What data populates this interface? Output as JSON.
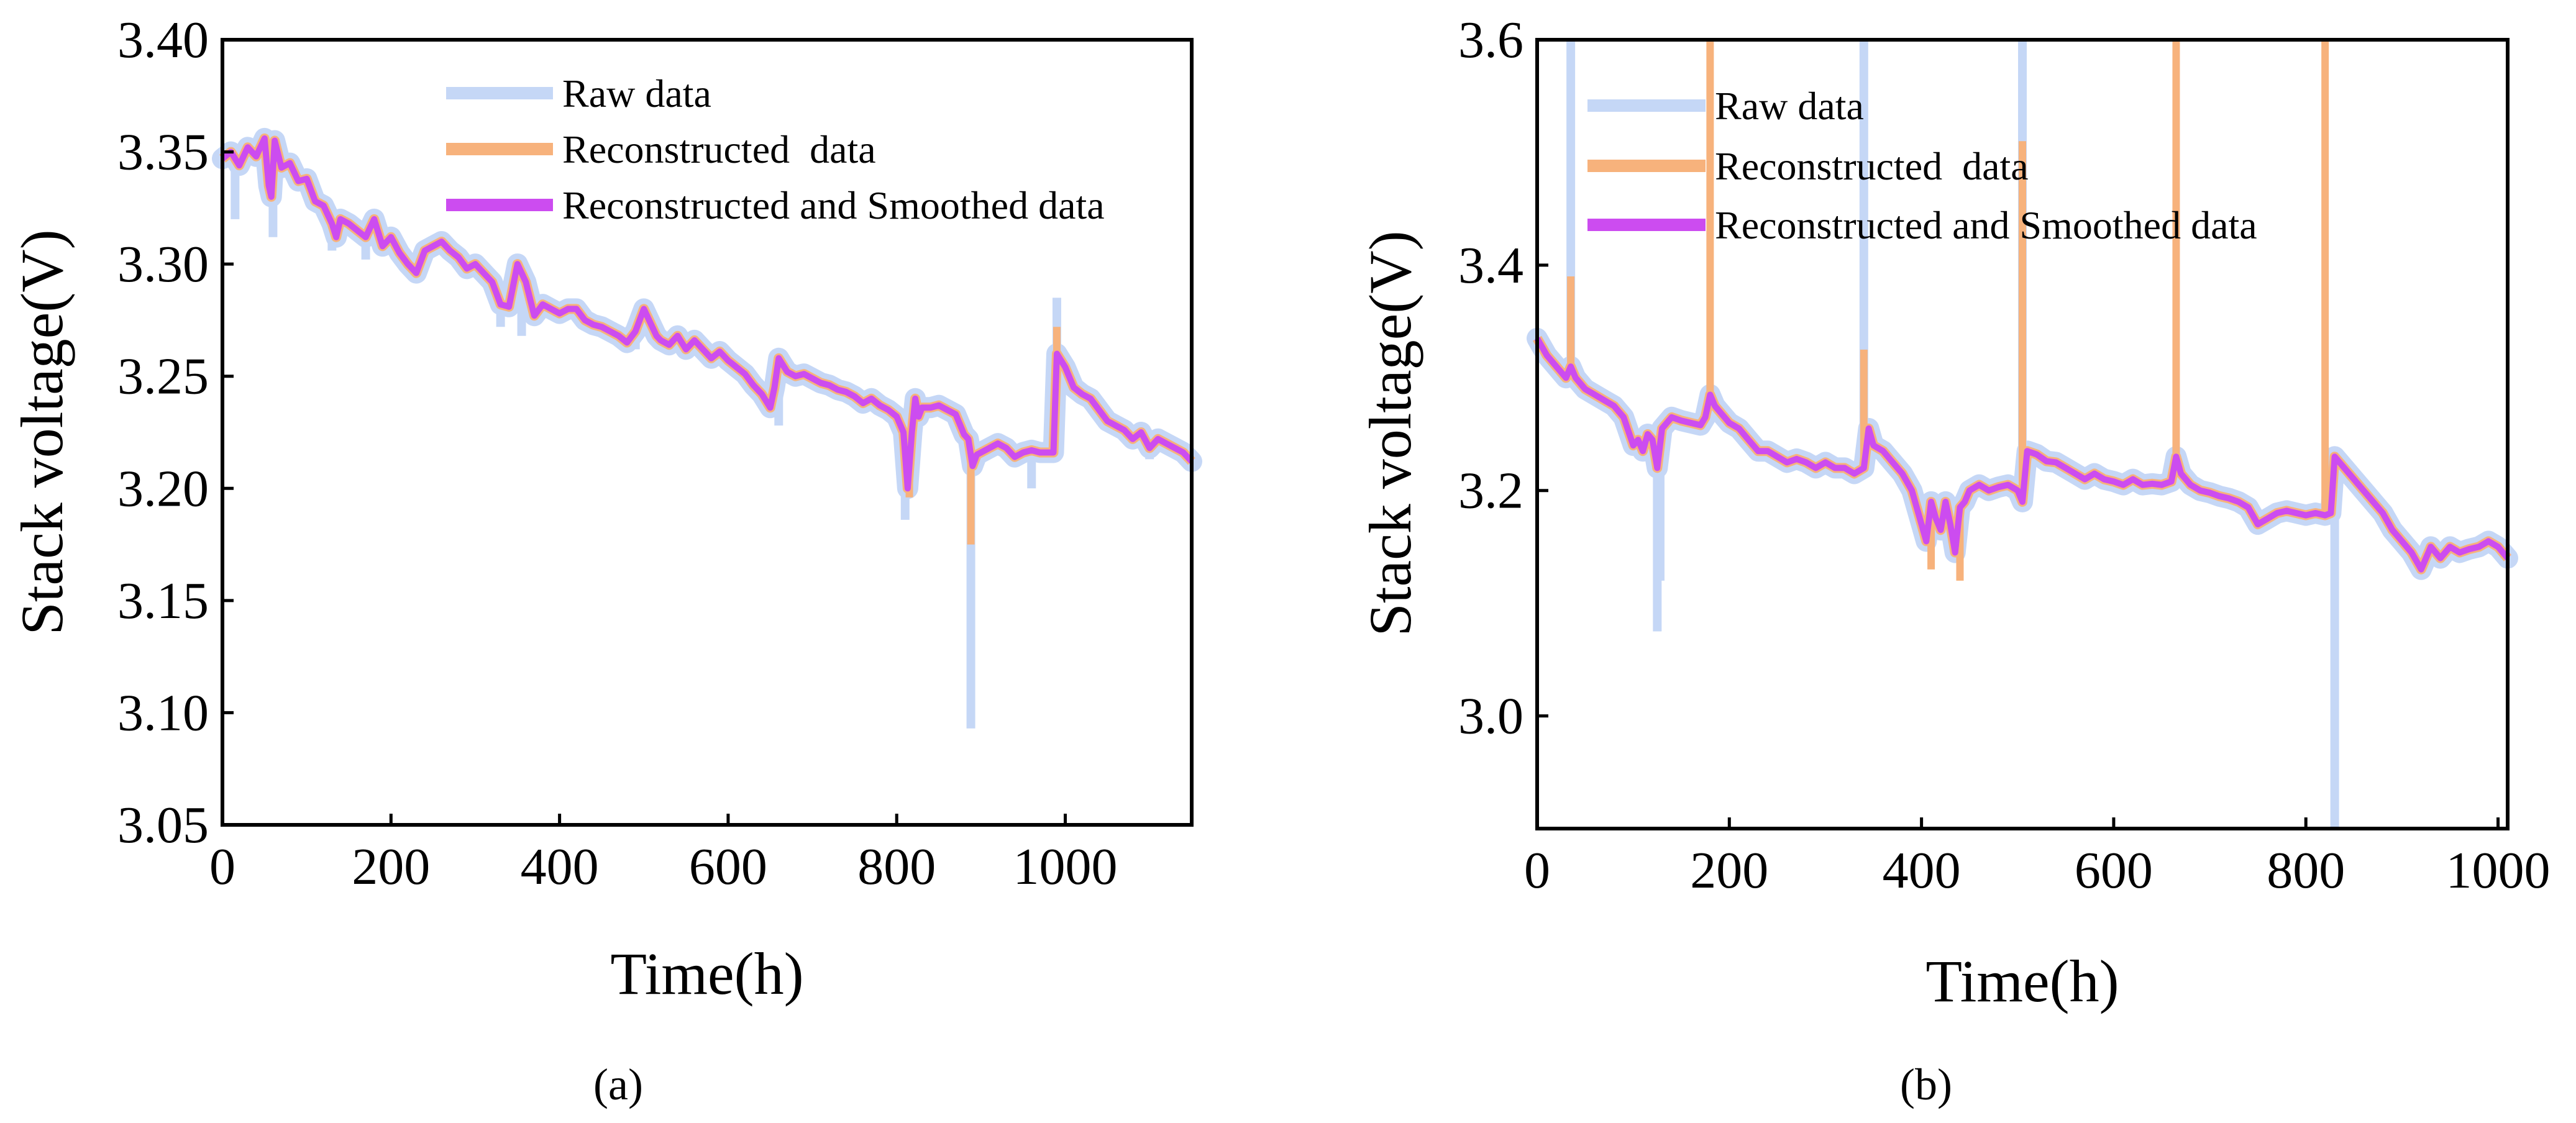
{
  "figure": {
    "panels": [
      {
        "id": "a",
        "label": "(a)"
      },
      {
        "id": "b",
        "label": "(b)"
      }
    ]
  },
  "colors": {
    "raw": "#c5d7f6",
    "reconstructed": "#f7b27c",
    "smoothed": "#cc4cf0",
    "axis": "#000000"
  },
  "chart_data": [
    {
      "panel": "a",
      "type": "line",
      "title": "",
      "xlabel": "Time(h)",
      "ylabel": "Stack voltage(V)",
      "xlim": [
        0,
        1150
      ],
      "ylim": [
        3.05,
        3.4
      ],
      "xticks": [
        0,
        200,
        400,
        600,
        800,
        1000
      ],
      "yticks": [
        3.05,
        3.1,
        3.15,
        3.2,
        3.25,
        3.3,
        3.35,
        3.4
      ],
      "xtick_labels": [
        "0",
        "200",
        "400",
        "600",
        "800",
        "1000"
      ],
      "ytick_labels": [
        "3.05",
        "3.10",
        "3.15",
        "3.20",
        "3.25",
        "3.30",
        "3.35",
        "3.40"
      ],
      "grid": false,
      "legend": "top-right",
      "band_halfwidth": 0.006,
      "series": [
        {
          "name": "Raw data",
          "key": "raw",
          "spikes": [
            [
              15,
              3.32
            ],
            [
              60,
              3.312
            ],
            [
              130,
              3.306
            ],
            [
              170,
              3.302
            ],
            [
              230,
              3.293
            ],
            [
              330,
              3.272
            ],
            [
              355,
              3.268
            ],
            [
              490,
              3.262
            ],
            [
              660,
              3.228
            ],
            [
              810,
              3.186
            ],
            [
              888,
              3.093
            ],
            [
              960,
              3.2
            ],
            [
              990,
              3.285
            ],
            [
              1100,
              3.213
            ]
          ]
        },
        {
          "name": "Reconstructed  data",
          "key": "reconstructed",
          "spikes": [
            [
              888,
              3.175
            ],
            [
              990,
              3.272
            ],
            [
              815,
              3.196
            ]
          ]
        },
        {
          "name": "Reconstructed and Smoothed data",
          "key": "smoothed",
          "x": [
            0,
            10,
            20,
            30,
            40,
            50,
            55,
            58,
            62,
            70,
            80,
            90,
            100,
            110,
            120,
            130,
            135,
            140,
            150,
            160,
            170,
            180,
            190,
            200,
            210,
            220,
            230,
            240,
            250,
            260,
            270,
            280,
            290,
            300,
            310,
            320,
            330,
            340,
            350,
            360,
            370,
            380,
            390,
            400,
            410,
            420,
            430,
            440,
            450,
            460,
            470,
            480,
            490,
            500,
            510,
            515,
            520,
            530,
            540,
            550,
            560,
            570,
            580,
            590,
            600,
            610,
            620,
            630,
            640,
            650,
            655,
            660,
            665,
            670,
            680,
            690,
            700,
            710,
            720,
            730,
            740,
            750,
            760,
            770,
            780,
            790,
            800,
            808,
            813,
            818,
            822,
            826,
            830,
            840,
            850,
            860,
            870,
            880,
            885,
            890,
            895,
            900,
            910,
            920,
            930,
            940,
            950,
            960,
            970,
            980,
            986,
            990,
            1000,
            1010,
            1020,
            1030,
            1040,
            1050,
            1060,
            1070,
            1080,
            1090,
            1100,
            1110,
            1120,
            1130,
            1140,
            1150
          ],
          "y": [
            3.347,
            3.35,
            3.344,
            3.352,
            3.348,
            3.356,
            3.335,
            3.33,
            3.355,
            3.343,
            3.345,
            3.337,
            3.338,
            3.328,
            3.326,
            3.318,
            3.312,
            3.32,
            3.318,
            3.315,
            3.312,
            3.32,
            3.308,
            3.312,
            3.305,
            3.3,
            3.296,
            3.306,
            3.308,
            3.31,
            3.306,
            3.303,
            3.298,
            3.3,
            3.296,
            3.292,
            3.282,
            3.281,
            3.3,
            3.292,
            3.277,
            3.282,
            3.28,
            3.278,
            3.28,
            3.28,
            3.275,
            3.273,
            3.272,
            3.27,
            3.268,
            3.265,
            3.27,
            3.28,
            3.272,
            3.268,
            3.266,
            3.264,
            3.268,
            3.262,
            3.266,
            3.262,
            3.258,
            3.261,
            3.257,
            3.254,
            3.251,
            3.246,
            3.242,
            3.236,
            3.245,
            3.258,
            3.255,
            3.252,
            3.25,
            3.251,
            3.249,
            3.247,
            3.246,
            3.244,
            3.243,
            3.241,
            3.238,
            3.24,
            3.237,
            3.235,
            3.232,
            3.225,
            3.2,
            3.225,
            3.24,
            3.232,
            3.236,
            3.236,
            3.237,
            3.235,
            3.233,
            3.224,
            3.222,
            3.21,
            3.215,
            3.216,
            3.218,
            3.22,
            3.218,
            3.214,
            3.216,
            3.217,
            3.216,
            3.216,
            3.216,
            3.26,
            3.254,
            3.245,
            3.242,
            3.24,
            3.235,
            3.23,
            3.228,
            3.226,
            3.222,
            3.225,
            3.218,
            3.222,
            3.22,
            3.218,
            3.216,
            3.212
          ]
        }
      ]
    },
    {
      "panel": "b",
      "type": "line",
      "title": "",
      "xlabel": "Time(h)",
      "ylabel": "Stack voltage(V)",
      "xlim": [
        0,
        1010
      ],
      "ylim": [
        2.9,
        3.6
      ],
      "xticks": [
        0,
        200,
        400,
        600,
        800,
        1000
      ],
      "yticks": [
        3.0,
        3.2,
        3.4,
        3.6
      ],
      "xtick_labels": [
        "0",
        "200",
        "400",
        "600",
        "800",
        "1000"
      ],
      "ytick_labels": [
        "3.0",
        "3.2",
        "3.4",
        "3.6"
      ],
      "grid": false,
      "legend": "top-right",
      "band_halfwidth": 0.006,
      "series": [
        {
          "name": "Raw data",
          "key": "raw",
          "spikes": [
            [
              35,
              3.6
            ],
            [
              125,
              3.075
            ],
            [
              128,
              3.12
            ],
            [
              340,
              3.6
            ],
            [
              505,
              3.6
            ],
            [
              830,
              2.9
            ]
          ]
        },
        {
          "name": "Reconstructed  data",
          "key": "reconstructed",
          "spikes": [
            [
              35,
              3.39
            ],
            [
              180,
              3.6
            ],
            [
              340,
              3.325
            ],
            [
              505,
              3.51
            ],
            [
              665,
              3.6
            ],
            [
              820,
              3.6
            ],
            [
              440,
              3.12
            ],
            [
              410,
              3.13
            ]
          ]
        },
        {
          "name": "Reconstructed and Smoothed data",
          "key": "smoothed",
          "x": [
            0,
            10,
            20,
            30,
            35,
            40,
            50,
            60,
            70,
            80,
            90,
            100,
            105,
            110,
            115,
            120,
            125,
            130,
            140,
            150,
            160,
            170,
            175,
            180,
            185,
            190,
            200,
            210,
            220,
            230,
            240,
            250,
            260,
            270,
            280,
            290,
            300,
            310,
            320,
            330,
            340,
            345,
            350,
            360,
            370,
            380,
            390,
            400,
            405,
            410,
            415,
            420,
            425,
            430,
            435,
            440,
            445,
            450,
            460,
            470,
            480,
            490,
            500,
            505,
            510,
            520,
            530,
            540,
            550,
            560,
            570,
            580,
            590,
            600,
            610,
            620,
            630,
            640,
            650,
            660,
            665,
            670,
            680,
            690,
            700,
            710,
            720,
            730,
            740,
            750,
            760,
            770,
            780,
            790,
            800,
            810,
            820,
            826,
            830,
            840,
            850,
            860,
            870,
            880,
            890,
            900,
            910,
            920,
            930,
            940,
            950,
            960,
            970,
            980,
            990,
            1000,
            1010
          ],
          "y": [
            3.335,
            3.32,
            3.31,
            3.3,
            3.31,
            3.3,
            3.29,
            3.285,
            3.28,
            3.275,
            3.265,
            3.24,
            3.245,
            3.235,
            3.25,
            3.245,
            3.22,
            3.255,
            3.265,
            3.262,
            3.26,
            3.258,
            3.265,
            3.285,
            3.275,
            3.27,
            3.26,
            3.255,
            3.245,
            3.235,
            3.235,
            3.23,
            3.225,
            3.228,
            3.225,
            3.22,
            3.225,
            3.22,
            3.22,
            3.215,
            3.22,
            3.255,
            3.24,
            3.235,
            3.225,
            3.215,
            3.2,
            3.17,
            3.155,
            3.19,
            3.175,
            3.165,
            3.19,
            3.17,
            3.145,
            3.185,
            3.19,
            3.2,
            3.205,
            3.2,
            3.203,
            3.205,
            3.2,
            3.19,
            3.235,
            3.232,
            3.226,
            3.225,
            3.22,
            3.215,
            3.21,
            3.215,
            3.21,
            3.208,
            3.205,
            3.21,
            3.205,
            3.206,
            3.205,
            3.208,
            3.23,
            3.215,
            3.205,
            3.2,
            3.198,
            3.195,
            3.193,
            3.19,
            3.185,
            3.17,
            3.175,
            3.18,
            3.182,
            3.18,
            3.178,
            3.18,
            3.178,
            3.18,
            3.23,
            3.22,
            3.21,
            3.2,
            3.19,
            3.18,
            3.165,
            3.155,
            3.145,
            3.13,
            3.15,
            3.14,
            3.15,
            3.145,
            3.148,
            3.15,
            3.155,
            3.15,
            3.14
          ]
        }
      ]
    }
  ]
}
